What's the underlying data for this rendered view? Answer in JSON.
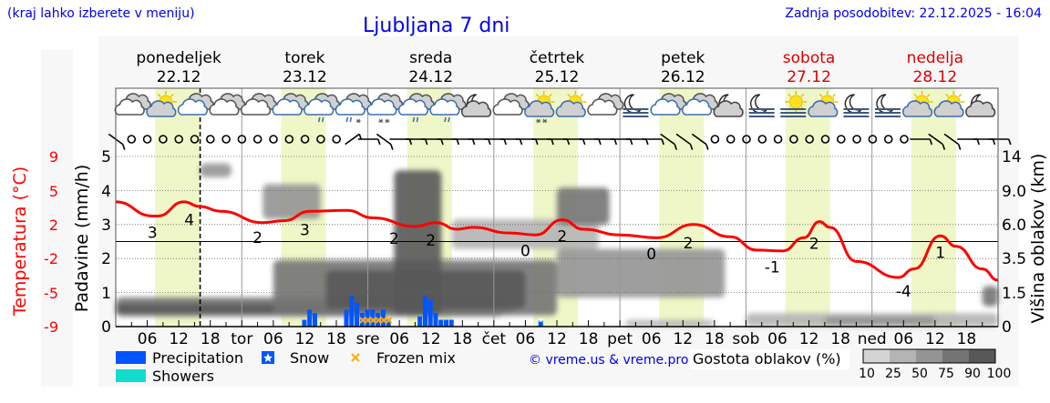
{
  "header": {
    "location_hint": "(kraj lahko izberete v meniju)",
    "title": "Ljubljana 7 dni",
    "updated": "Zadnja posodobitev: 22.12.2025 - 16:04"
  },
  "colors": {
    "temperature": "#ff0000",
    "precipitation": "#0055ff",
    "showers": "#11ddcc",
    "frozen_mix": "#ffaa00",
    "daylight": "#eff7c8",
    "weekend": "#dd0000",
    "link": "#0000ee"
  },
  "chart_data": {
    "type": "meteogram",
    "now": "22.12 16:04",
    "daylight": [
      "07:30",
      "16:00"
    ],
    "days": [
      {
        "name": "ponedeljek",
        "date": "22.12",
        "abbr": "",
        "weekend": false
      },
      {
        "name": "torek",
        "date": "23.12",
        "abbr": "tor",
        "weekend": false
      },
      {
        "name": "sreda",
        "date": "24.12",
        "abbr": "sre",
        "weekend": false
      },
      {
        "name": "četrtek",
        "date": "25.12",
        "abbr": "čet",
        "weekend": false
      },
      {
        "name": "petek",
        "date": "26.12",
        "abbr": "pet",
        "weekend": false
      },
      {
        "name": "sobota",
        "date": "27.12",
        "abbr": "sob",
        "weekend": true
      },
      {
        "name": "nedelja",
        "date": "28.12",
        "abbr": "ned",
        "weekend": true
      }
    ],
    "hour_ticks": [
      "06",
      "12",
      "18"
    ],
    "axes": {
      "temperature": {
        "label": "Temperatura (°C)",
        "ticks": [
          "9",
          "5",
          "2",
          "-2",
          "-5",
          "-9"
        ],
        "range": [
          -9,
          9
        ]
      },
      "precipitation": {
        "label": "Padavine (mm/h)",
        "ticks": [
          "5",
          "4",
          "3",
          "2",
          "1",
          "0"
        ],
        "range": [
          0,
          5
        ]
      },
      "cloud_height": {
        "label": "Višina oblakov (km)",
        "ticks": [
          "14",
          "9.0",
          "6.0",
          "3.5",
          "1.5",
          "0"
        ],
        "values": [
          14,
          9,
          6,
          3.5,
          1.5,
          0
        ]
      }
    },
    "temperature": [
      [
        "22.12 00",
        4.2
      ],
      [
        "22.12 07",
        2.7
      ],
      [
        "22.12 08",
        2.7
      ],
      [
        "22.12 13",
        4.2
      ],
      [
        "22.12 16",
        3.7
      ],
      [
        "22.12 20",
        3.2
      ],
      [
        "23.12 04",
        2.0
      ],
      [
        "23.12 08",
        2.2
      ],
      [
        "23.12 13",
        3.2
      ],
      [
        "23.12 20",
        3.3
      ],
      [
        "24.12 01",
        2.5
      ],
      [
        "24.12 09",
        1.6
      ],
      [
        "24.12 13",
        2.0
      ],
      [
        "24.12 17",
        1.3
      ],
      [
        "24.12 20",
        1.5
      ],
      [
        "25.12 03",
        0.9
      ],
      [
        "25.12 08",
        0.7
      ],
      [
        "25.12 13",
        2.3
      ],
      [
        "25.12 17",
        1.3
      ],
      [
        "26.12 00",
        0.7
      ],
      [
        "26.12 07",
        0.4
      ],
      [
        "26.12 14",
        1.8
      ],
      [
        "26.12 21",
        0.5
      ],
      [
        "27.12 02",
        -0.9
      ],
      [
        "27.12 07",
        -1.0
      ],
      [
        "27.12 11",
        0.4
      ],
      [
        "27.12 14",
        2.1
      ],
      [
        "27.12 16",
        1.5
      ],
      [
        "27.12 21",
        -2.1
      ],
      [
        "28.12 05",
        -3.8
      ],
      [
        "28.12 08",
        -2.9
      ],
      [
        "28.12 13",
        0.6
      ],
      [
        "28.12 16",
        -0.5
      ],
      [
        "28.12 21",
        -2.9
      ],
      [
        "29.12 00",
        -4.1
      ]
    ],
    "temperature_labels": [
      [
        "22.12 07",
        "3"
      ],
      [
        "22.12 14",
        "4"
      ],
      [
        "23.12 03",
        "2"
      ],
      [
        "23.12 12",
        "3"
      ],
      [
        "24.12 05",
        "2"
      ],
      [
        "24.12 12",
        "2"
      ],
      [
        "25.12 06",
        "0"
      ],
      [
        "25.12 13",
        "2"
      ],
      [
        "26.12 06",
        "0"
      ],
      [
        "26.12 13",
        "2"
      ],
      [
        "27.12 05",
        "-1"
      ],
      [
        "27.12 13",
        "2"
      ],
      [
        "28.12 06",
        "-4"
      ],
      [
        "28.12 13",
        "1"
      ]
    ],
    "precipitation": [
      [
        "23.12 12",
        0.2,
        "rain"
      ],
      [
        "23.12 13",
        0.5,
        "rain"
      ],
      [
        "23.12 14",
        0.4,
        "rain"
      ],
      [
        "23.12 20",
        0.5,
        "rain"
      ],
      [
        "23.12 21",
        0.9,
        "rain"
      ],
      [
        "23.12 22",
        0.7,
        "rain"
      ],
      [
        "23.12 23",
        0.4,
        "frozen"
      ],
      [
        "24.12 00",
        0.5,
        "frozen"
      ],
      [
        "24.12 01",
        0.5,
        "frozen"
      ],
      [
        "24.12 02",
        0.4,
        "frozen"
      ],
      [
        "24.12 03",
        0.5,
        "frozen"
      ],
      [
        "24.12 04",
        0.2,
        "frozen"
      ],
      [
        "24.12 10",
        0.3,
        "rain"
      ],
      [
        "24.12 11",
        0.9,
        "rain"
      ],
      [
        "24.12 12",
        0.8,
        "rain"
      ],
      [
        "24.12 13",
        0.4,
        "rain"
      ],
      [
        "24.12 14",
        0.2,
        "rain"
      ],
      [
        "24.12 15",
        0.2,
        "rain"
      ],
      [
        "24.12 16",
        0.2,
        "rain"
      ],
      [
        "25.12 09",
        0.2,
        "snow"
      ]
    ],
    "cloud_density": [
      {
        "from": "22.12 00",
        "to": "25.12 02",
        "base_km": 0.45,
        "top_km": 1.3,
        "percent": 75
      },
      {
        "from": "22.12 00",
        "to": "25.12 04",
        "base_km": 0.6,
        "top_km": 1.0,
        "percent": 90
      },
      {
        "from": "23.12 06",
        "to": "25.12 12",
        "base_km": 0.5,
        "top_km": 3.4,
        "percent": 75
      },
      {
        "from": "23.12 16",
        "to": "25.12 06",
        "base_km": 0.8,
        "top_km": 2.8,
        "percent": 90
      },
      {
        "from": "24.12 05",
        "to": "24.12 14",
        "base_km": 0.5,
        "top_km": 12,
        "percent": 90
      },
      {
        "from": "23.12 04",
        "to": "23.12 15",
        "base_km": 6.5,
        "top_km": 10,
        "percent": 50
      },
      {
        "from": "22.12 16",
        "to": "22.12 22",
        "base_km": 11,
        "top_km": 13,
        "percent": 50
      },
      {
        "from": "24.12 16",
        "to": "25.12 20",
        "base_km": 4.2,
        "top_km": 6.5,
        "percent": 25
      },
      {
        "from": "25.12 12",
        "to": "25.12 22",
        "base_km": 6,
        "top_km": 9.5,
        "percent": 75
      },
      {
        "from": "25.12 12",
        "to": "26.12 20",
        "base_km": 1.3,
        "top_km": 4.2,
        "percent": 50
      },
      {
        "from": "26.12 01",
        "to": "26.12 18",
        "base_km": 0,
        "top_km": 0.3,
        "percent": 25
      },
      {
        "from": "27.12 00",
        "to": "29.12 00",
        "base_km": 0,
        "top_km": 0.6,
        "percent": 25
      },
      {
        "from": "27.12 15",
        "to": "28.12 12",
        "base_km": 0.05,
        "top_km": 0.45,
        "percent": 50
      },
      {
        "from": "28.12 21",
        "to": "29.12 00",
        "base_km": 0.9,
        "top_km": 1.9,
        "percent": 75
      }
    ],
    "weather_icons": [
      "cloudy",
      "sun-cloud",
      "cloudy-blue",
      "cloudy",
      "cloudy",
      "cloudy-blue",
      "cloudy-rain",
      "cloudy-rain-snow",
      "cloudy-snow",
      "cloudy-rain",
      "cloudy-rain",
      "moon-cloud",
      "cloudy",
      "sun-cloud-snow",
      "sun-cloud",
      "cloudy",
      "moon-fog",
      "cloudy-blue",
      "cloudy-blue",
      "moon-cloud",
      "moon-fog",
      "sun-fog",
      "sun-cloud",
      "moon-fog",
      "moon-fog",
      "sun-cloud",
      "sun-cloud",
      "moon-cloud"
    ],
    "wind_3h": [
      "NW",
      "calm",
      "calm",
      "calm",
      "calm",
      "calm",
      "calm",
      "calm",
      "calm",
      "calm",
      "calm",
      "calm",
      "calm",
      "calm",
      "calm",
      "SW",
      "W",
      "NW",
      "W",
      "W",
      "W",
      "W",
      "W",
      "W",
      "W",
      "W",
      "W",
      "W",
      "W",
      "W",
      "W",
      "W",
      "W",
      "W",
      "W",
      "NW",
      "NW",
      "NW",
      "calm",
      "calm",
      "calm",
      "calm",
      "calm",
      "calm",
      "calm",
      "calm",
      "calm",
      "calm",
      "calm",
      "calm",
      "calm",
      "W",
      "NW",
      "NW",
      "W",
      "W",
      "W"
    ]
  },
  "legend": {
    "precipitation": "Precipitation",
    "snow": "Snow",
    "frozen_mix": "Frozen mix",
    "showers": "Showers",
    "copyright": "© vreme.us & vreme.pro",
    "cloud_density_title": "Gostota oblakov (%)",
    "cloud_density_levels": [
      "10",
      "25",
      "50",
      "75",
      "90",
      "100"
    ],
    "cloud_density_colors": [
      "#d4d4d4",
      "#b4b4b4",
      "#949494",
      "#747474",
      "#585858"
    ]
  }
}
